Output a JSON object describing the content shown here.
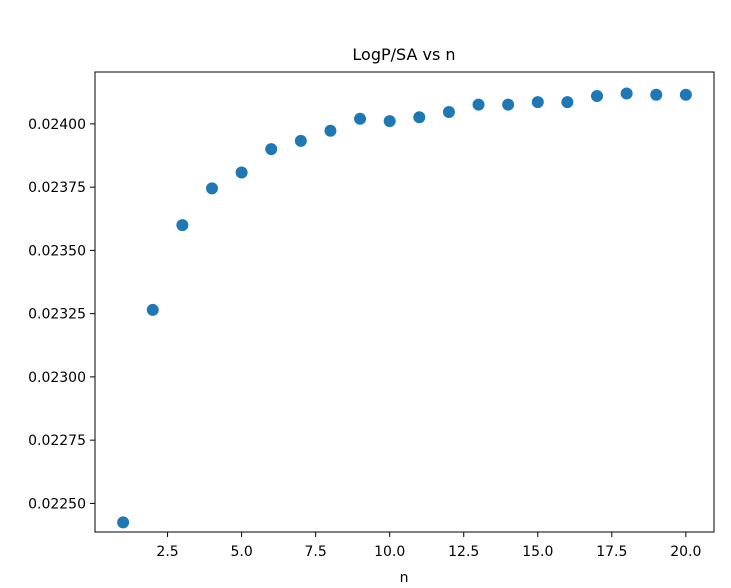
{
  "chart_data": {
    "type": "scatter",
    "title": "LogP/SA vs n",
    "xlabel": "n",
    "ylabel": "",
    "x": [
      1,
      2,
      3,
      4,
      5,
      6,
      7,
      8,
      9,
      10,
      11,
      12,
      13,
      14,
      15,
      16,
      17,
      18,
      19,
      20
    ],
    "y": [
      0.022425,
      0.023265,
      0.0236,
      0.023745,
      0.023808,
      0.0239,
      0.023933,
      0.023973,
      0.02402,
      0.024011,
      0.024026,
      0.024047,
      0.024076,
      0.024076,
      0.024086,
      0.024086,
      0.02411,
      0.02412,
      0.024115,
      0.024115
    ],
    "xlim": [
      0.05,
      20.95
    ],
    "ylim": [
      0.022387,
      0.024205
    ],
    "xticks": [
      2.5,
      5.0,
      7.5,
      10.0,
      12.5,
      15.0,
      17.5,
      20.0
    ],
    "xtick_labels": [
      "2.5",
      "5.0",
      "7.5",
      "10.0",
      "12.5",
      "15.0",
      "17.5",
      "20.0"
    ],
    "yticks": [
      0.0225,
      0.02275,
      0.023,
      0.02325,
      0.0235,
      0.02375,
      0.024
    ],
    "ytick_labels": [
      "0.02250",
      "0.02275",
      "0.02300",
      "0.02325",
      "0.02350",
      "0.02375",
      "0.02400"
    ],
    "grid": false,
    "legend": "none",
    "marker_color": "#1f77b4"
  }
}
